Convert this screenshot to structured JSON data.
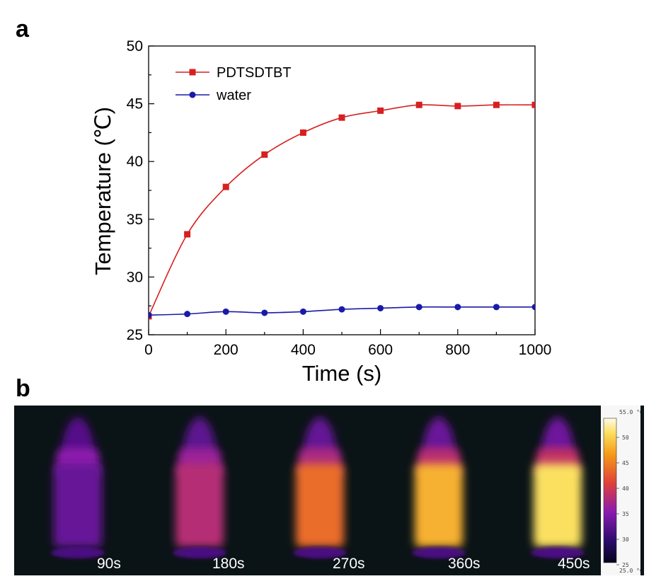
{
  "panels": {
    "a": "a",
    "b": "b"
  },
  "chart_data": {
    "type": "line",
    "xlabel": "Time (s)",
    "ylabel": "Temperature (℃)",
    "xlim": [
      0,
      1000
    ],
    "ylim": [
      25,
      50
    ],
    "xticks": [
      0,
      200,
      400,
      600,
      800,
      1000
    ],
    "yticks": [
      25,
      30,
      35,
      40,
      45,
      50
    ],
    "legend_position": "top-left",
    "grid": false,
    "x": [
      0,
      100,
      200,
      300,
      400,
      500,
      600,
      700,
      800,
      900,
      1000
    ],
    "series": [
      {
        "name": "PDTSDTBT",
        "color": "#d62020",
        "marker": "square",
        "values": [
          26.6,
          33.7,
          37.8,
          40.6,
          42.5,
          43.8,
          44.4,
          44.9,
          44.8,
          44.9,
          44.9
        ]
      },
      {
        "name": "water",
        "color": "#1a1aa8",
        "marker": "circle",
        "values": [
          26.7,
          26.8,
          27.0,
          26.9,
          27.0,
          27.2,
          27.3,
          27.4,
          27.4,
          27.4,
          27.4
        ]
      }
    ]
  },
  "thermal": {
    "frames": [
      {
        "label": "90s",
        "level": 0.28
      },
      {
        "label": "180s",
        "level": 0.45
      },
      {
        "label": "270s",
        "level": 0.65
      },
      {
        "label": "360s",
        "level": 0.8
      },
      {
        "label": "450s",
        "level": 0.9
      }
    ],
    "colorbar": {
      "max_label": "55.0 °C",
      "min_label": "25.0 °C",
      "ticks": [
        "50",
        "45",
        "40",
        "35",
        "30",
        "25"
      ]
    }
  }
}
